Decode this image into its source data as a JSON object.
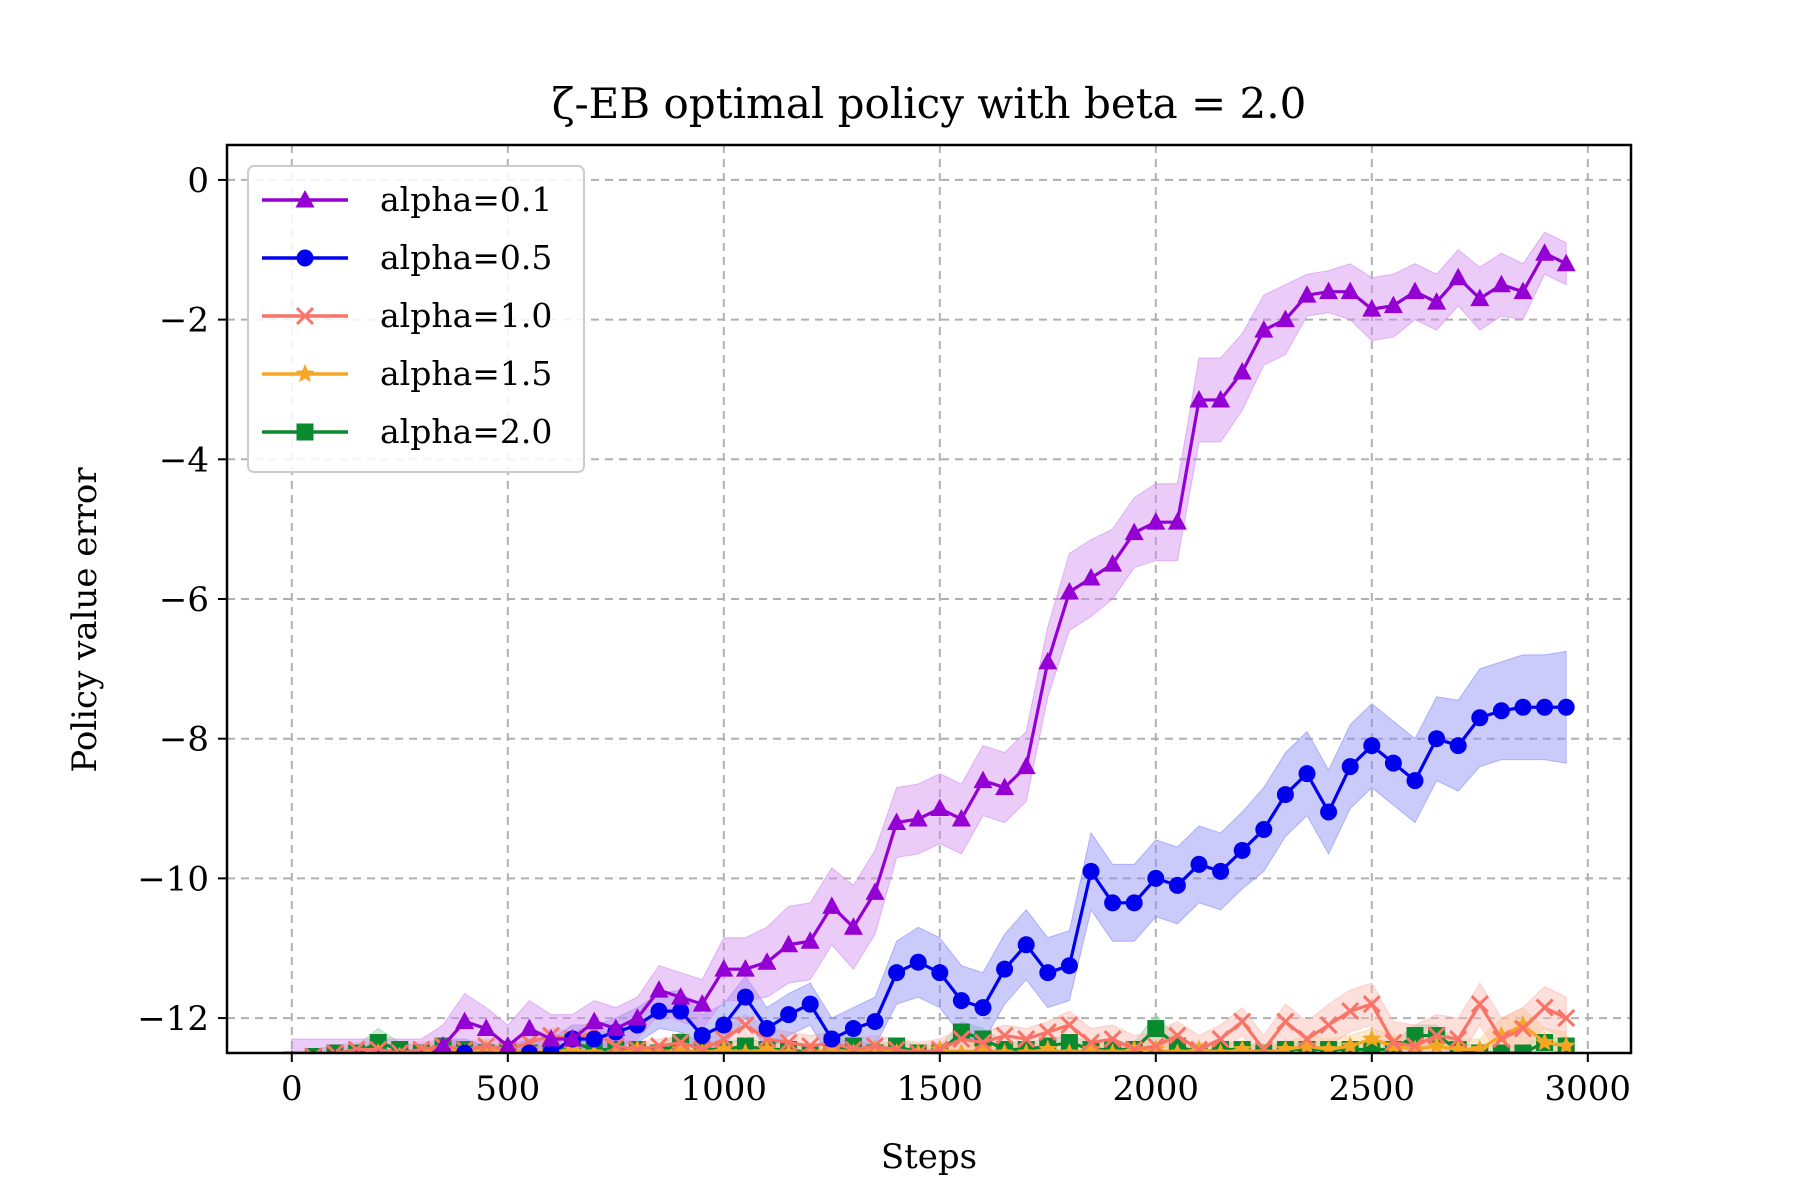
{
  "chart_data": {
    "type": "line",
    "title": "ζ-EB optimal policy with beta = 2.0",
    "xlabel": "Steps",
    "ylabel": "Policy value error",
    "xlim": [
      -150,
      3100
    ],
    "ylim": [
      -12.5,
      0.5
    ],
    "xticks": [
      0,
      500,
      1000,
      1500,
      2000,
      2500,
      3000
    ],
    "yticks": [
      0,
      -2,
      -4,
      -6,
      -8,
      -10,
      -12
    ],
    "xtick_labels": [
      "0",
      "500",
      "1000",
      "1500",
      "2000",
      "2500",
      "3000"
    ],
    "ytick_labels": [
      "0",
      "−2",
      "−4",
      "−6",
      "−8",
      "−10",
      "−12"
    ],
    "grid": true,
    "legend_position": "top-left",
    "series": [
      {
        "name": "alpha=0.1",
        "color": "#9400D3",
        "band_color": "#D28CF0",
        "marker": "triangle",
        "x": [
          0,
          50,
          100,
          150,
          200,
          250,
          300,
          350,
          400,
          450,
          500,
          550,
          600,
          650,
          700,
          750,
          800,
          850,
          900,
          950,
          1000,
          1050,
          1100,
          1150,
          1200,
          1250,
          1300,
          1350,
          1400,
          1450,
          1500,
          1550,
          1600,
          1650,
          1700,
          1750,
          1800,
          1850,
          1900,
          1950,
          2000,
          2050,
          2100,
          2150,
          2200,
          2250,
          2300,
          2350,
          2400,
          2450,
          2500,
          2550,
          2600,
          2650,
          2700,
          2750,
          2800,
          2850,
          2900,
          2950
        ],
        "y": [
          -12.6,
          -12.6,
          -12.6,
          -12.6,
          -12.6,
          -12.6,
          -12.6,
          -12.4,
          -12.05,
          -12.15,
          -12.4,
          -12.15,
          -12.3,
          -12.3,
          -12.05,
          -12.15,
          -12.0,
          -11.6,
          -11.7,
          -11.8,
          -11.3,
          -11.3,
          -11.2,
          -10.95,
          -10.9,
          -10.4,
          -10.7,
          -10.2,
          -9.2,
          -9.15,
          -9.0,
          -9.15,
          -8.6,
          -8.7,
          -8.4,
          -6.9,
          -5.9,
          -5.7,
          -5.5,
          -5.05,
          -4.9,
          -4.9,
          -3.15,
          -3.15,
          -2.75,
          -2.15,
          -2.0,
          -1.65,
          -1.6,
          -1.6,
          -1.85,
          -1.8,
          -1.6,
          -1.75,
          -1.4,
          -1.7,
          -1.5,
          -1.6,
          -1.05,
          -1.2
        ],
        "band": [
          0.3,
          0.3,
          0.3,
          0.3,
          0.3,
          0.3,
          0.3,
          0.3,
          0.4,
          0.3,
          0.3,
          0.4,
          0.35,
          0.35,
          0.3,
          0.3,
          0.3,
          0.35,
          0.35,
          0.35,
          0.45,
          0.45,
          0.5,
          0.55,
          0.55,
          0.55,
          0.6,
          0.6,
          0.5,
          0.5,
          0.5,
          0.5,
          0.5,
          0.5,
          0.5,
          0.5,
          0.55,
          0.55,
          0.5,
          0.5,
          0.55,
          0.55,
          0.6,
          0.6,
          0.55,
          0.5,
          0.5,
          0.3,
          0.3,
          0.4,
          0.45,
          0.45,
          0.4,
          0.4,
          0.4,
          0.45,
          0.45,
          0.4,
          0.3,
          0.3
        ]
      },
      {
        "name": "alpha=0.5",
        "color": "#0000EE",
        "band_color": "#8A8CF6",
        "marker": "circle",
        "x": [
          0,
          50,
          100,
          150,
          200,
          250,
          300,
          350,
          400,
          450,
          500,
          550,
          600,
          650,
          700,
          750,
          800,
          850,
          900,
          950,
          1000,
          1050,
          1100,
          1150,
          1200,
          1250,
          1300,
          1350,
          1400,
          1450,
          1500,
          1550,
          1600,
          1650,
          1700,
          1750,
          1800,
          1850,
          1900,
          1950,
          2000,
          2050,
          2100,
          2150,
          2200,
          2250,
          2300,
          2350,
          2400,
          2450,
          2500,
          2550,
          2600,
          2650,
          2700,
          2750,
          2800,
          2850,
          2900,
          2950
        ],
        "y": [
          -12.7,
          -12.7,
          -12.7,
          -12.7,
          -12.7,
          -12.7,
          -12.7,
          -12.5,
          -12.5,
          -12.6,
          -12.6,
          -12.5,
          -12.5,
          -12.3,
          -12.3,
          -12.2,
          -12.1,
          -11.9,
          -11.9,
          -12.25,
          -12.1,
          -11.7,
          -12.15,
          -11.95,
          -11.8,
          -12.3,
          -12.15,
          -12.05,
          -11.35,
          -11.2,
          -11.35,
          -11.75,
          -11.85,
          -11.3,
          -10.95,
          -11.35,
          -11.25,
          -9.9,
          -10.35,
          -10.35,
          -10.0,
          -10.1,
          -9.8,
          -9.9,
          -9.6,
          -9.3,
          -8.8,
          -8.5,
          -9.05,
          -8.4,
          -8.1,
          -8.35,
          -8.6,
          -8.0,
          -8.1,
          -7.7,
          -7.6,
          -7.55,
          -7.55,
          -7.55
        ],
        "band": [
          0.2,
          0.2,
          0.2,
          0.2,
          0.2,
          0.2,
          0.2,
          0.2,
          0.2,
          0.2,
          0.2,
          0.2,
          0.2,
          0.2,
          0.2,
          0.2,
          0.25,
          0.25,
          0.3,
          0.3,
          0.3,
          0.3,
          0.3,
          0.3,
          0.3,
          0.3,
          0.3,
          0.35,
          0.45,
          0.5,
          0.5,
          0.5,
          0.5,
          0.5,
          0.5,
          0.5,
          0.5,
          0.55,
          0.55,
          0.55,
          0.55,
          0.55,
          0.55,
          0.55,
          0.55,
          0.6,
          0.6,
          0.6,
          0.6,
          0.6,
          0.6,
          0.6,
          0.6,
          0.6,
          0.65,
          0.7,
          0.7,
          0.75,
          0.75,
          0.8
        ]
      },
      {
        "name": "alpha=1.0",
        "color": "#FA7366",
        "band_color": "#FBB9B0",
        "marker": "x",
        "x": [
          0,
          50,
          100,
          150,
          200,
          250,
          300,
          350,
          400,
          450,
          500,
          550,
          600,
          650,
          700,
          750,
          800,
          850,
          900,
          950,
          1000,
          1050,
          1100,
          1150,
          1200,
          1250,
          1300,
          1350,
          1400,
          1450,
          1500,
          1550,
          1600,
          1650,
          1700,
          1750,
          1800,
          1850,
          1900,
          1950,
          2000,
          2050,
          2100,
          2150,
          2200,
          2250,
          2300,
          2350,
          2400,
          2450,
          2500,
          2550,
          2600,
          2650,
          2700,
          2750,
          2800,
          2850,
          2900,
          2950
        ],
        "y": [
          -12.6,
          -12.55,
          -12.5,
          -12.45,
          -12.45,
          -12.5,
          -12.45,
          -12.4,
          -12.45,
          -12.4,
          -12.45,
          -12.35,
          -12.25,
          -12.3,
          -12.2,
          -12.4,
          -12.45,
          -12.4,
          -12.35,
          -12.45,
          -12.3,
          -12.1,
          -12.3,
          -12.35,
          -12.4,
          -12.35,
          -12.45,
          -12.4,
          -12.45,
          -12.5,
          -12.45,
          -12.3,
          -12.35,
          -12.25,
          -12.3,
          -12.2,
          -12.1,
          -12.35,
          -12.3,
          -12.45,
          -12.4,
          -12.25,
          -12.45,
          -12.3,
          -12.05,
          -12.45,
          -12.05,
          -12.3,
          -12.1,
          -11.9,
          -11.8,
          -12.35,
          -12.4,
          -12.25,
          -12.3,
          -11.8,
          -12.3,
          -12.15,
          -11.85,
          -12.0
        ],
        "band": [
          0.1,
          0.1,
          0.1,
          0.1,
          0.1,
          0.1,
          0.1,
          0.1,
          0.1,
          0.1,
          0.1,
          0.1,
          0.1,
          0.1,
          0.1,
          0.1,
          0.1,
          0.1,
          0.1,
          0.1,
          0.15,
          0.15,
          0.15,
          0.15,
          0.15,
          0.15,
          0.15,
          0.15,
          0.15,
          0.15,
          0.15,
          0.15,
          0.15,
          0.15,
          0.15,
          0.15,
          0.2,
          0.2,
          0.2,
          0.2,
          0.2,
          0.2,
          0.2,
          0.2,
          0.2,
          0.2,
          0.25,
          0.25,
          0.3,
          0.3,
          0.3,
          0.3,
          0.3,
          0.3,
          0.3,
          0.3,
          0.3,
          0.3,
          0.3,
          0.3
        ]
      },
      {
        "name": "alpha=1.5",
        "color": "#F5A623",
        "band_color": "#FAD28C",
        "marker": "star",
        "x": [
          0,
          50,
          100,
          150,
          200,
          250,
          300,
          350,
          400,
          450,
          500,
          550,
          600,
          650,
          700,
          750,
          800,
          850,
          900,
          950,
          1000,
          1050,
          1100,
          1150,
          1200,
          1250,
          1300,
          1350,
          1400,
          1450,
          1500,
          1550,
          1600,
          1650,
          1700,
          1750,
          1800,
          1850,
          1900,
          1950,
          2000,
          2050,
          2100,
          2150,
          2200,
          2250,
          2300,
          2350,
          2400,
          2450,
          2500,
          2550,
          2600,
          2650,
          2700,
          2750,
          2800,
          2850,
          2900,
          2950
        ],
        "y": [
          -12.7,
          -12.65,
          -12.6,
          -12.55,
          -12.5,
          -12.55,
          -12.5,
          -12.45,
          -12.5,
          -12.45,
          -12.5,
          -12.45,
          -12.5,
          -12.45,
          -12.5,
          -12.5,
          -12.45,
          -12.5,
          -12.45,
          -12.5,
          -12.45,
          -12.5,
          -12.45,
          -12.5,
          -12.5,
          -12.45,
          -12.5,
          -12.45,
          -12.5,
          -12.5,
          -12.45,
          -12.5,
          -12.45,
          -12.5,
          -12.5,
          -12.45,
          -12.5,
          -12.45,
          -12.5,
          -12.45,
          -12.45,
          -12.5,
          -12.45,
          -12.5,
          -12.45,
          -12.5,
          -12.45,
          -12.4,
          -12.45,
          -12.4,
          -12.3,
          -12.4,
          -12.45,
          -12.4,
          -12.45,
          -12.45,
          -12.25,
          -12.1,
          -12.35,
          -12.4
        ],
        "band": [
          0.1,
          0.1,
          0.1,
          0.1,
          0.1,
          0.1,
          0.1,
          0.1,
          0.1,
          0.1,
          0.1,
          0.1,
          0.1,
          0.1,
          0.1,
          0.1,
          0.1,
          0.1,
          0.1,
          0.1,
          0.1,
          0.1,
          0.1,
          0.1,
          0.1,
          0.1,
          0.1,
          0.1,
          0.1,
          0.1,
          0.1,
          0.1,
          0.1,
          0.1,
          0.1,
          0.1,
          0.1,
          0.1,
          0.1,
          0.1,
          0.1,
          0.1,
          0.1,
          0.1,
          0.1,
          0.1,
          0.1,
          0.15,
          0.15,
          0.15,
          0.15,
          0.15,
          0.15,
          0.15,
          0.15,
          0.15,
          0.25,
          0.25,
          0.2,
          0.2
        ]
      },
      {
        "name": "alpha=2.0",
        "color": "#0A8A2E",
        "band_color": "#8FD4A1",
        "marker": "square",
        "x": [
          0,
          50,
          100,
          150,
          200,
          250,
          300,
          350,
          400,
          450,
          500,
          550,
          600,
          650,
          700,
          750,
          800,
          850,
          900,
          950,
          1000,
          1050,
          1100,
          1150,
          1200,
          1250,
          1300,
          1350,
          1400,
          1450,
          1500,
          1550,
          1600,
          1650,
          1700,
          1750,
          1800,
          1850,
          1900,
          1950,
          2000,
          2050,
          2100,
          2150,
          2200,
          2250,
          2300,
          2350,
          2400,
          2450,
          2500,
          2550,
          2600,
          2650,
          2700,
          2750,
          2800,
          2850,
          2900,
          2950
        ],
        "y": [
          -12.6,
          -12.55,
          -12.5,
          -12.5,
          -12.35,
          -12.45,
          -12.5,
          -12.4,
          -12.45,
          -12.5,
          -12.45,
          -12.5,
          -12.5,
          -12.35,
          -12.45,
          -12.45,
          -12.45,
          -12.5,
          -12.35,
          -12.45,
          -12.45,
          -12.4,
          -12.45,
          -12.45,
          -12.5,
          -12.45,
          -12.4,
          -12.5,
          -12.4,
          -12.5,
          -12.5,
          -12.2,
          -12.3,
          -12.45,
          -12.45,
          -12.4,
          -12.35,
          -12.45,
          -12.45,
          -12.45,
          -12.15,
          -12.4,
          -12.5,
          -12.45,
          -12.45,
          -12.5,
          -12.45,
          -12.45,
          -12.45,
          -12.45,
          -12.45,
          -12.45,
          -12.25,
          -12.25,
          -12.45,
          -12.5,
          -12.5,
          -12.5,
          -12.35,
          -12.4
        ],
        "band": [
          0.1,
          0.1,
          0.1,
          0.1,
          0.2,
          0.1,
          0.1,
          0.1,
          0.1,
          0.1,
          0.1,
          0.1,
          0.1,
          0.15,
          0.1,
          0.1,
          0.1,
          0.1,
          0.15,
          0.1,
          0.1,
          0.1,
          0.1,
          0.1,
          0.1,
          0.1,
          0.1,
          0.1,
          0.1,
          0.1,
          0.1,
          0.15,
          0.15,
          0.1,
          0.1,
          0.1,
          0.1,
          0.1,
          0.1,
          0.1,
          0.2,
          0.1,
          0.1,
          0.1,
          0.1,
          0.1,
          0.1,
          0.1,
          0.1,
          0.1,
          0.1,
          0.1,
          0.15,
          0.15,
          0.1,
          0.1,
          0.1,
          0.1,
          0.1,
          0.1
        ]
      }
    ]
  }
}
